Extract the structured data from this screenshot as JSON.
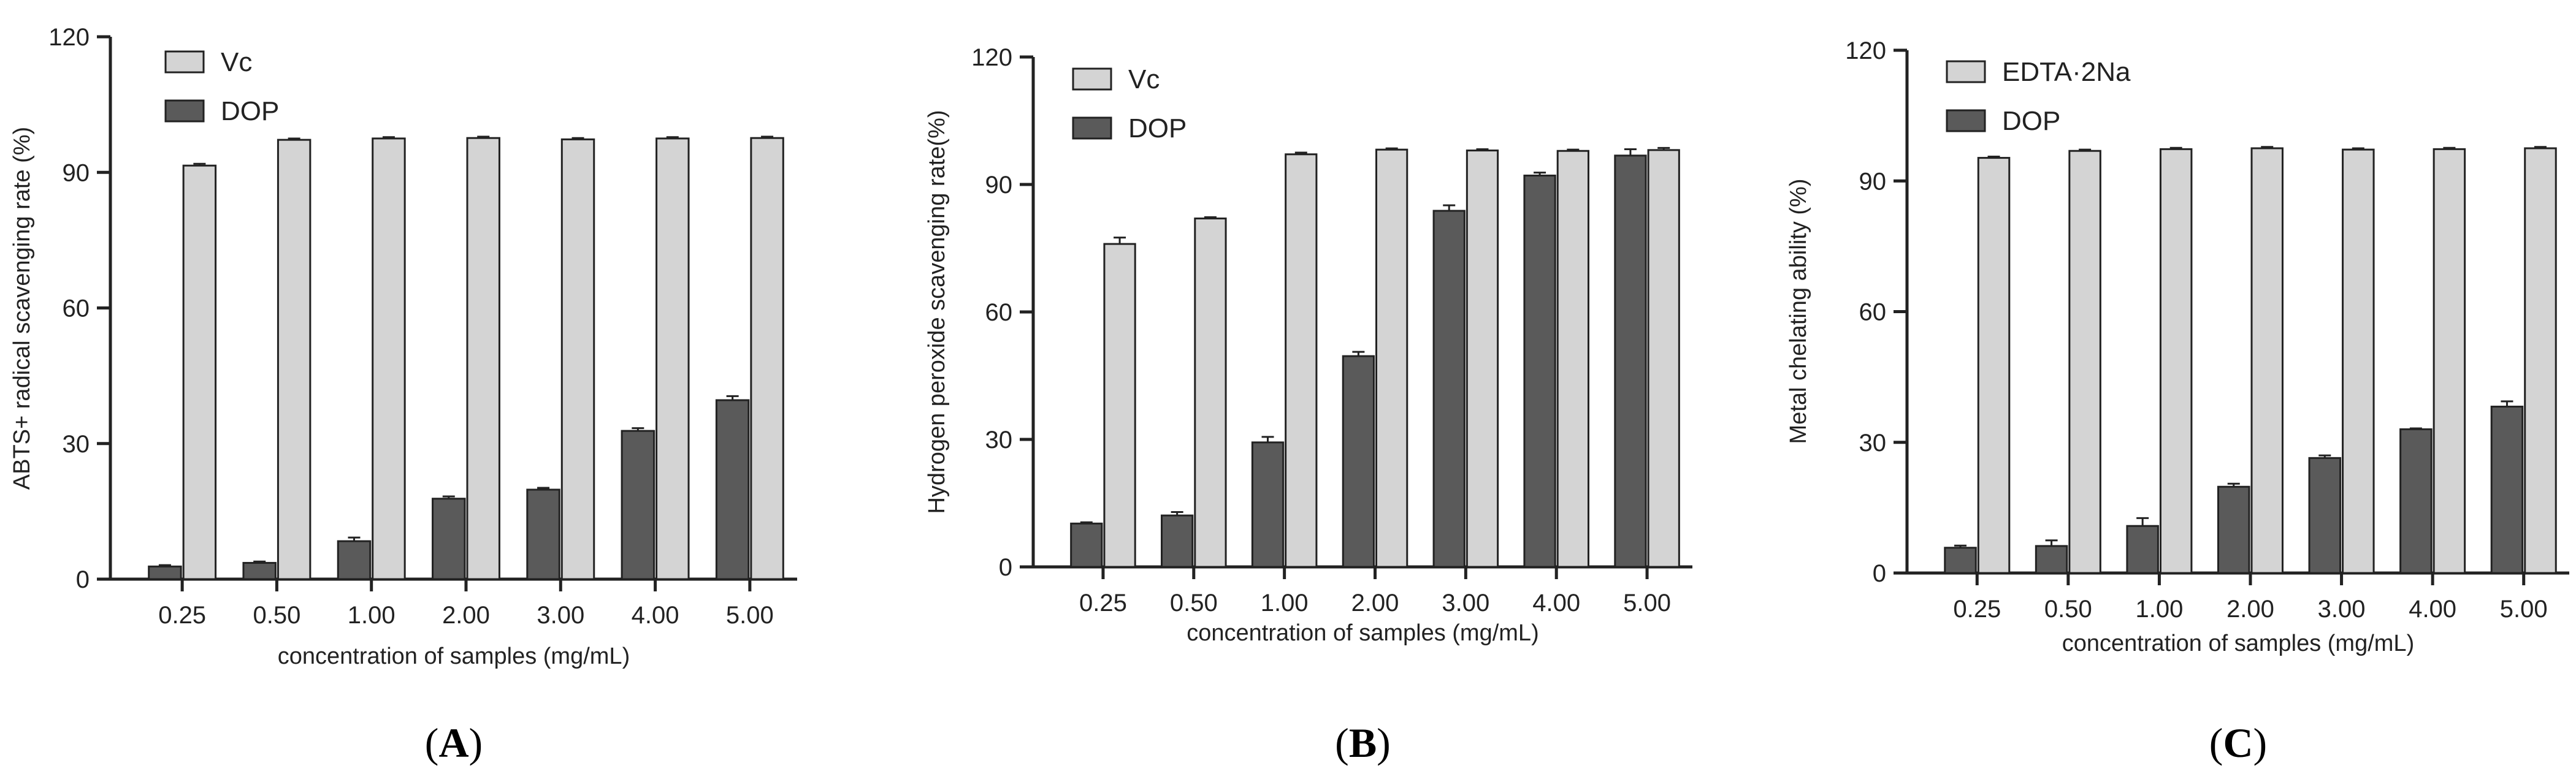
{
  "colors": {
    "light": "#d4d4d4",
    "dark": "#5a5a5a",
    "stroke": "#222222"
  },
  "chart_data": [
    {
      "type": "bar",
      "panel": "A",
      "categories": [
        "0.25",
        "0.50",
        "1.00",
        "2.00",
        "3.00",
        "4.00",
        "5.00"
      ],
      "ylim": [
        0,
        120
      ],
      "yticks": [
        0,
        30,
        60,
        90,
        120
      ],
      "xlabel": "concentration of samples (mg/mL)",
      "ylabel": "ABTS+ radical scavenging rate (%)",
      "series": [
        {
          "name": "DOP",
          "values": [
            2.8,
            3.6,
            8.4,
            17.8,
            19.8,
            32.8,
            39.6
          ],
          "errors": [
            0.3,
            0.3,
            0.8,
            0.5,
            0.4,
            0.6,
            0.9
          ]
        },
        {
          "name": "Vc",
          "values": [
            91.5,
            97.2,
            97.5,
            97.6,
            97.3,
            97.5,
            97.6
          ],
          "errors": [
            0.4,
            0.3,
            0.3,
            0.3,
            0.3,
            0.3,
            0.3
          ]
        }
      ],
      "legend": [
        {
          "name": "Vc"
        },
        {
          "name": "DOP"
        }
      ]
    },
    {
      "type": "bar",
      "panel": "B",
      "categories": [
        "0.25",
        "0.50",
        "1.00",
        "2.00",
        "3.00",
        "4.00",
        "5.00"
      ],
      "ylim": [
        0,
        120
      ],
      "yticks": [
        0,
        30,
        60,
        90,
        120
      ],
      "xlabel": "concentration of samples (mg/mL)",
      "ylabel": "Hydrogen peroxide scavenging rate(%)",
      "series": [
        {
          "name": "DOP",
          "values": [
            10.2,
            12.1,
            29.3,
            49.6,
            83.8,
            92.1,
            96.8
          ],
          "errors": [
            0.3,
            0.8,
            1.3,
            1.0,
            1.3,
            0.7,
            1.5
          ]
        },
        {
          "name": "Vc",
          "values": [
            76.0,
            82.0,
            97.1,
            98.2,
            98.0,
            97.9,
            98.1
          ],
          "errors": [
            1.5,
            0.3,
            0.4,
            0.3,
            0.3,
            0.3,
            0.5
          ]
        }
      ],
      "legend": [
        {
          "name": "Vc"
        },
        {
          "name": "DOP"
        }
      ]
    },
    {
      "type": "bar",
      "panel": "C",
      "categories": [
        "0.25",
        "0.50",
        "1.00",
        "2.00",
        "3.00",
        "4.00",
        "5.00"
      ],
      "ylim": [
        0,
        120
      ],
      "yticks": [
        0,
        30,
        60,
        90,
        120
      ],
      "xlabel": "concentration of samples (mg/mL)",
      "ylabel": "Metal chelating ability (%)",
      "series": [
        {
          "name": "DOP",
          "values": [
            5.8,
            6.2,
            10.8,
            19.8,
            26.4,
            33.0,
            38.2
          ],
          "errors": [
            0.5,
            1.3,
            1.8,
            0.7,
            0.6,
            0.2,
            1.2
          ]
        },
        {
          "name": "EDTA·2Na",
          "values": [
            95.3,
            96.9,
            97.3,
            97.5,
            97.2,
            97.3,
            97.5
          ],
          "errors": [
            0.3,
            0.3,
            0.3,
            0.3,
            0.3,
            0.3,
            0.3
          ]
        }
      ],
      "legend": [
        {
          "name": "EDTA·2Na"
        },
        {
          "name": "DOP"
        }
      ]
    }
  ]
}
